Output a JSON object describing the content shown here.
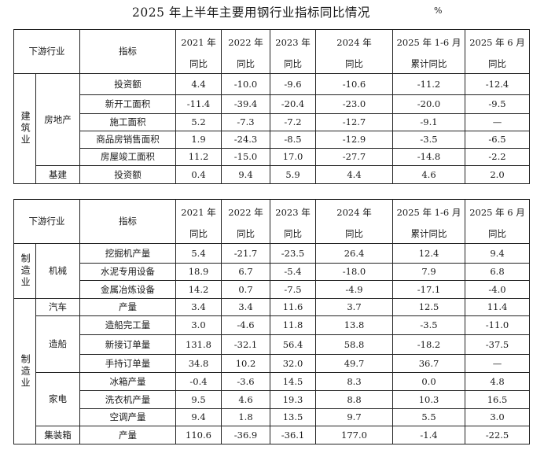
{
  "title": "2025 年上半年主要用钢行业指标同比情况",
  "unit": "%",
  "header": {
    "industry": "下游行业",
    "indicator": "指标",
    "years": [
      "2021 年",
      "2022 年",
      "2023 年",
      "2024 年",
      "2025 年 1-6 月",
      "2025 年 6 月"
    ],
    "subs": [
      "同比",
      "同比",
      "同比",
      "同比",
      "累计同比",
      "同比"
    ]
  },
  "construction": {
    "sector": "建筑业",
    "real_estate": "房地产",
    "infrastructure": "基建",
    "rows": [
      {
        "name": "投资额",
        "v": [
          "4.4",
          "-10.0",
          "-9.6",
          "-10.6",
          "-11.2",
          "-12.4"
        ]
      },
      {
        "name": "新开工面积",
        "v": [
          "-11.4",
          "-39.4",
          "-20.4",
          "-23.0",
          "-20.0",
          "-9.5"
        ]
      },
      {
        "name": "施工面积",
        "v": [
          "5.2",
          "-7.3",
          "-7.2",
          "-12.7",
          "-9.1",
          "—"
        ]
      },
      {
        "name": "商品房销售面积",
        "v": [
          "1.9",
          "-24.3",
          "-8.5",
          "-12.9",
          "-3.5",
          "-6.5"
        ]
      },
      {
        "name": "房屋竣工面积",
        "v": [
          "11.2",
          "-15.0",
          "17.0",
          "-27.7",
          "-14.8",
          "-2.2"
        ]
      },
      {
        "name": "投资额",
        "v": [
          "0.4",
          "9.4",
          "5.9",
          "4.4",
          "4.6",
          "2.0"
        ]
      }
    ]
  },
  "manufacturing": {
    "sector": "制造业",
    "groups": [
      "机械",
      "汽车",
      "造船",
      "家电",
      "集装箱"
    ],
    "rows": [
      {
        "name": "挖掘机产量",
        "v": [
          "5.4",
          "-21.7",
          "-23.5",
          "26.4",
          "12.4",
          "9.4"
        ]
      },
      {
        "name": "水泥专用设备",
        "v": [
          "18.9",
          "6.7",
          "-5.4",
          "-18.0",
          "7.9",
          "6.8"
        ]
      },
      {
        "name": "金属冶炼设备",
        "v": [
          "14.2",
          "0.7",
          "-7.5",
          "-4.9",
          "-17.1",
          "-4.0"
        ]
      },
      {
        "name": "产量",
        "v": [
          "3.4",
          "3.4",
          "11.6",
          "3.7",
          "12.5",
          "11.4"
        ]
      },
      {
        "name": "造船完工量",
        "v": [
          "3.0",
          "-4.6",
          "11.8",
          "13.8",
          "-3.5",
          "-11.0"
        ]
      },
      {
        "name": "新接订单量",
        "v": [
          "131.8",
          "-32.1",
          "56.4",
          "58.8",
          "-18.2",
          "-37.5"
        ]
      },
      {
        "name": "手持订单量",
        "v": [
          "34.8",
          "10.2",
          "32.0",
          "49.7",
          "36.7",
          "—"
        ]
      },
      {
        "name": "冰箱产量",
        "v": [
          "-0.4",
          "-3.6",
          "14.5",
          "8.3",
          "0.0",
          "4.8"
        ]
      },
      {
        "name": "洗衣机产量",
        "v": [
          "9.5",
          "4.6",
          "19.3",
          "8.8",
          "10.3",
          "16.5"
        ]
      },
      {
        "name": "空调产量",
        "v": [
          "9.4",
          "1.8",
          "13.5",
          "9.7",
          "5.5",
          "3.0"
        ]
      },
      {
        "name": "产量",
        "v": [
          "110.6",
          "-36.9",
          "-36.1",
          "177.0",
          "-1.4",
          "-22.5"
        ]
      }
    ]
  }
}
